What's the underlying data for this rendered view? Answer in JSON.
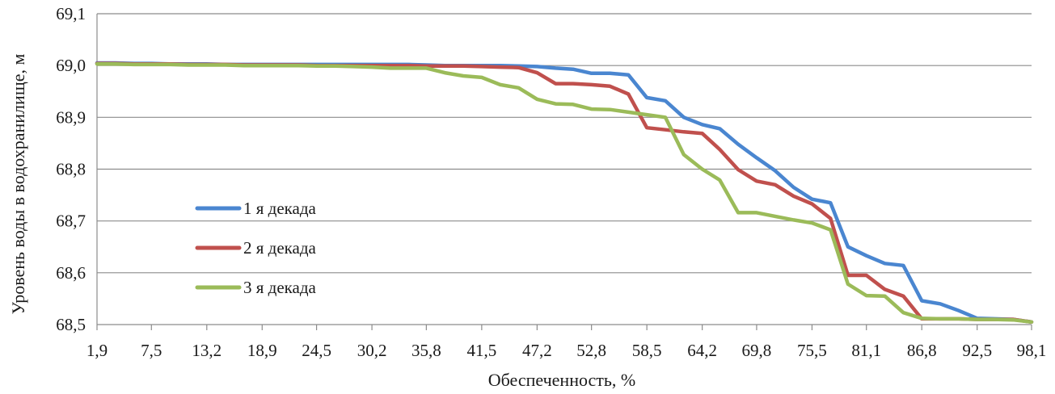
{
  "chart_data": {
    "type": "line",
    "xlabel": "Обеспеченность, %",
    "ylabel": "Уровень воды в водохранилище, м",
    "ylim": [
      68.5,
      69.1
    ],
    "yticks": [
      "68,5",
      "68,6",
      "68,7",
      "68,8",
      "68,9",
      "69,0",
      "69,1"
    ],
    "ytick_values": [
      68.5,
      68.6,
      68.7,
      68.8,
      68.9,
      69.0,
      69.1
    ],
    "x": [
      1.9,
      3.8,
      5.7,
      7.5,
      9.4,
      11.3,
      13.2,
      15.1,
      17.0,
      18.9,
      20.8,
      22.6,
      24.5,
      26.4,
      28.3,
      30.2,
      32.1,
      34.0,
      35.8,
      37.7,
      39.6,
      41.5,
      43.4,
      45.3,
      47.2,
      49.1,
      50.9,
      52.8,
      54.7,
      56.6,
      58.5,
      60.4,
      62.3,
      64.2,
      66.0,
      67.9,
      69.8,
      71.7,
      73.6,
      75.5,
      77.4,
      79.2,
      81.1,
      83.0,
      84.9,
      86.8,
      88.7,
      90.6,
      92.5,
      94.3,
      96.2,
      98.1
    ],
    "xtick_labels": [
      "1,9",
      "7,5",
      "13,2",
      "18,9",
      "24,5",
      "30,2",
      "35,8",
      "41,5",
      "47,2",
      "52,8",
      "58,5",
      "64,2",
      "69,8",
      "75,5",
      "81,1",
      "86,8",
      "92,5",
      "98,1"
    ],
    "series": [
      {
        "name": "1 я декада",
        "color": "#4a86d0",
        "values": [
          69.005,
          69.005,
          69.004,
          69.004,
          69.003,
          69.003,
          69.003,
          69.002,
          69.002,
          69.002,
          69.002,
          69.002,
          69.002,
          69.002,
          69.002,
          69.002,
          69.002,
          69.002,
          69.001,
          69.0,
          69.0,
          69.0,
          69.0,
          68.999,
          68.998,
          68.995,
          68.993,
          68.985,
          68.985,
          68.982,
          68.938,
          68.932,
          68.9,
          68.886,
          68.878,
          68.848,
          68.822,
          68.797,
          68.765,
          68.742,
          68.735,
          68.65,
          68.633,
          68.618,
          68.614,
          68.546,
          68.54,
          68.527,
          68.512,
          68.511,
          68.51,
          68.505
        ]
      },
      {
        "name": "2 я декада",
        "color": "#c0504d",
        "values": [
          69.004,
          69.004,
          69.003,
          69.003,
          69.003,
          69.002,
          69.002,
          69.002,
          69.001,
          69.001,
          69.001,
          69.001,
          69.0,
          69.0,
          69.0,
          69.0,
          69.0,
          69.0,
          68.999,
          68.999,
          68.999,
          68.998,
          68.997,
          68.996,
          68.986,
          68.965,
          68.965,
          68.963,
          68.96,
          68.945,
          68.88,
          68.876,
          68.872,
          68.869,
          68.838,
          68.799,
          68.777,
          68.77,
          68.748,
          68.733,
          68.705,
          68.595,
          68.595,
          68.568,
          68.555,
          68.511,
          68.511,
          68.511,
          68.51,
          68.51,
          68.51,
          68.505
        ]
      },
      {
        "name": "3 я декада",
        "color": "#9bbb59",
        "values": [
          69.003,
          69.003,
          69.002,
          69.002,
          69.002,
          69.001,
          69.001,
          69.001,
          69.0,
          69.0,
          69.0,
          69.0,
          68.999,
          68.999,
          68.998,
          68.997,
          68.995,
          68.995,
          68.995,
          68.986,
          68.98,
          68.977,
          68.963,
          68.957,
          68.935,
          68.926,
          68.925,
          68.916,
          68.915,
          68.91,
          68.905,
          68.9,
          68.828,
          68.8,
          68.779,
          68.716,
          68.716,
          68.709,
          68.702,
          68.696,
          68.683,
          68.578,
          68.556,
          68.555,
          68.523,
          68.512,
          68.511,
          68.511,
          68.51,
          68.51,
          68.509,
          68.505
        ]
      }
    ],
    "legend_placement": "left-middle",
    "grid": true
  }
}
